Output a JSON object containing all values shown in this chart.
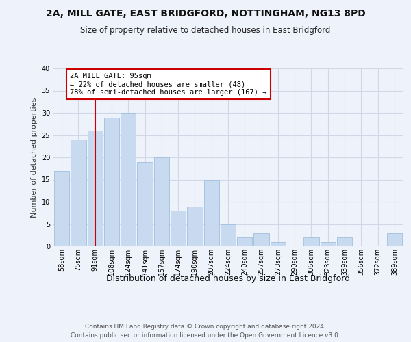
{
  "title": "2A, MILL GATE, EAST BRIDGFORD, NOTTINGHAM, NG13 8PD",
  "subtitle": "Size of property relative to detached houses in East Bridgford",
  "xlabel": "Distribution of detached houses by size in East Bridgford",
  "ylabel": "Number of detached properties",
  "categories": [
    "58sqm",
    "75sqm",
    "91sqm",
    "108sqm",
    "124sqm",
    "141sqm",
    "157sqm",
    "174sqm",
    "190sqm",
    "207sqm",
    "224sqm",
    "240sqm",
    "257sqm",
    "273sqm",
    "290sqm",
    "306sqm",
    "323sqm",
    "339sqm",
    "356sqm",
    "372sqm",
    "389sqm"
  ],
  "values": [
    17,
    24,
    26,
    29,
    30,
    19,
    20,
    8,
    9,
    15,
    5,
    2,
    3,
    1,
    0,
    2,
    1,
    2,
    0,
    0,
    3
  ],
  "bar_color": "#c8daf0",
  "bar_edge_color": "#a8c4e0",
  "vline_x_index": 2,
  "vline_color": "#cc0000",
  "annotation_text": "2A MILL GATE: 95sqm\n← 22% of detached houses are smaller (48)\n78% of semi-detached houses are larger (167) →",
  "annotation_box_color": "#ffffff",
  "annotation_box_edge": "#cc0000",
  "ylim": [
    0,
    40
  ],
  "yticks": [
    0,
    5,
    10,
    15,
    20,
    25,
    30,
    35,
    40
  ],
  "grid_color": "#d0d8e8",
  "background_color": "#eef2fb",
  "footer_text": "Contains HM Land Registry data © Crown copyright and database right 2024.\nContains public sector information licensed under the Open Government Licence v3.0.",
  "title_fontsize": 10,
  "subtitle_fontsize": 8.5,
  "xlabel_fontsize": 9,
  "ylabel_fontsize": 8,
  "tick_fontsize": 7,
  "annotation_fontsize": 7.5,
  "footer_fontsize": 6.5
}
